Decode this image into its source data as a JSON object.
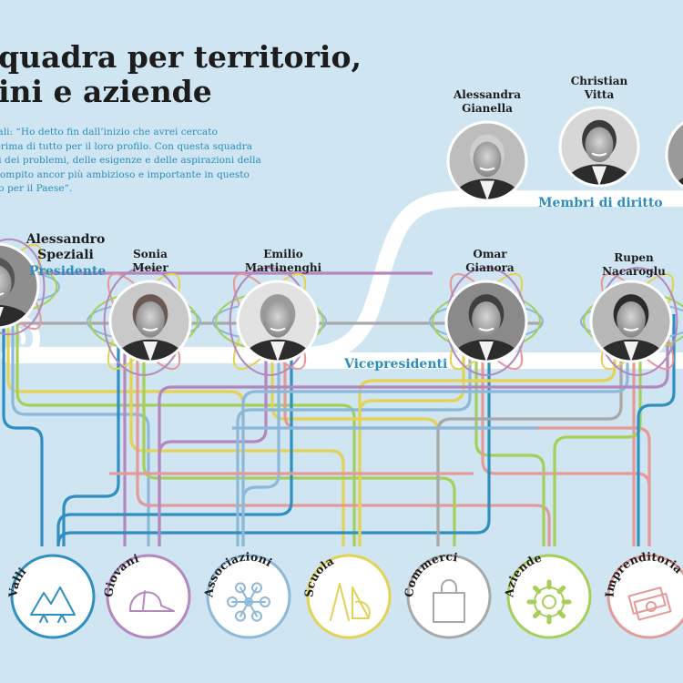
{
  "title": {
    "line1": "quadra per territorio,",
    "line2": "ini e aziende"
  },
  "quote": {
    "line1": "iali: “Ho detto fin dall’inizio che avrei cercato",
    "line2": "prima di tutto per il loro profilo. Con questa squadra",
    "line3": "ti dei problemi, delle esigenze e delle aspirazioni della",
    "line4": "compito ancor più ambizioso e importante in questo",
    "line5": "to per il Paese”."
  },
  "people": {
    "speziali": {
      "first": "Alessandro",
      "last": "Speziali",
      "role": "Presidente"
    },
    "meier": {
      "first": "Sonia",
      "last": "Meier"
    },
    "martinenghi": {
      "first": "Emilio",
      "last": "Martinenghi"
    },
    "gianora": {
      "first": "Omar",
      "last": "Gianora"
    },
    "nacaroglu": {
      "first": "Rupen",
      "last": "Nacaroglu"
    },
    "gianella": {
      "first": "Alessandra",
      "last": "Gianella"
    },
    "vitta": {
      "first": "Christian",
      "last": "Vitta"
    }
  },
  "groups": {
    "vicepresidenti": "Vicepresidenti",
    "membri_di_diritto": "Membri di diritto"
  },
  "categories": [
    {
      "label": "Valli",
      "color": "#2f8fc0",
      "icon": "mountains-icon"
    },
    {
      "label": "Giovani",
      "color": "#b487bd",
      "icon": "cap-icon"
    },
    {
      "label": "Associazioni",
      "color": "#8cb8d9",
      "icon": "network-icon"
    },
    {
      "label": "Scuola",
      "color": "#e3d255",
      "icon": "compass-ruler-icon"
    },
    {
      "label": "Commerci",
      "color": "#a8a8a8",
      "icon": "shopping-bag-icon"
    },
    {
      "label": "Aziende",
      "color": "#a6cf5a",
      "icon": "gear-icon"
    },
    {
      "label": "Imprenditoria",
      "color": "#e59a9a",
      "icon": "money-icon"
    }
  ]
}
